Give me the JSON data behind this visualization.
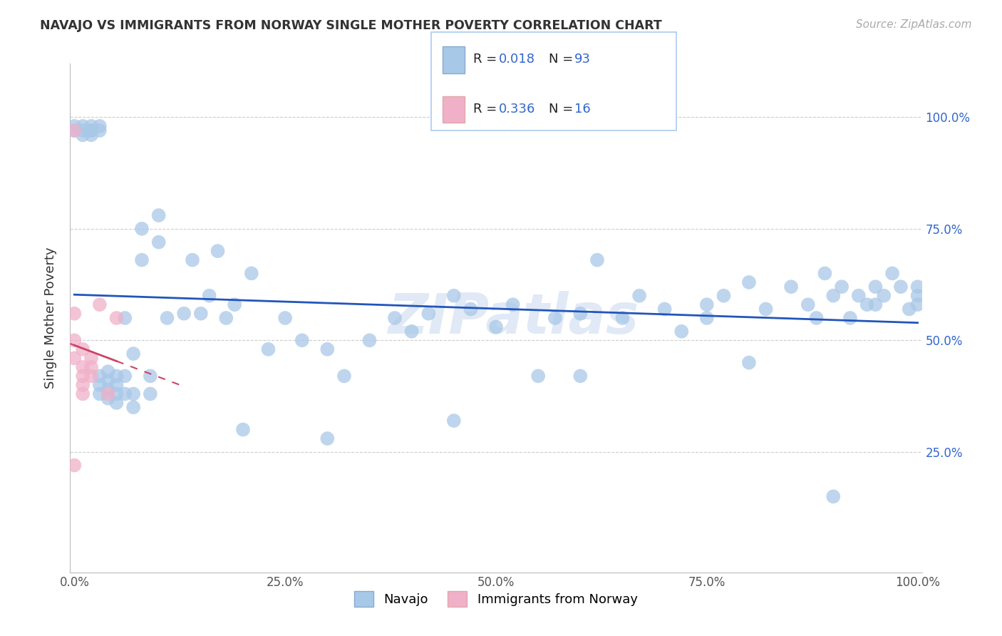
{
  "title": "NAVAJO VS IMMIGRANTS FROM NORWAY SINGLE MOTHER POVERTY CORRELATION CHART",
  "source": "Source: ZipAtlas.com",
  "ylabel": "Single Mother Poverty",
  "navajo_R": 0.018,
  "navajo_N": 93,
  "norway_R": 0.336,
  "norway_N": 16,
  "navajo_color": "#a8c8e8",
  "norway_color": "#f0b0c8",
  "navajo_line_color": "#2255bb",
  "norway_line_color": "#cc4466",
  "legend_labels": [
    "Navajo",
    "Immigrants from Norway"
  ],
  "background_color": "#ffffff",
  "watermark": "ZIPatlas",
  "navajo_x": [
    0.0,
    0.0,
    0.01,
    0.01,
    0.01,
    0.02,
    0.02,
    0.02,
    0.02,
    0.03,
    0.03,
    0.03,
    0.03,
    0.03,
    0.04,
    0.04,
    0.04,
    0.04,
    0.05,
    0.05,
    0.05,
    0.05,
    0.06,
    0.06,
    0.06,
    0.07,
    0.07,
    0.07,
    0.08,
    0.08,
    0.09,
    0.09,
    0.1,
    0.1,
    0.11,
    0.13,
    0.14,
    0.15,
    0.16,
    0.17,
    0.18,
    0.19,
    0.21,
    0.23,
    0.25,
    0.27,
    0.3,
    0.32,
    0.35,
    0.38,
    0.4,
    0.42,
    0.45,
    0.47,
    0.5,
    0.52,
    0.55,
    0.57,
    0.6,
    0.62,
    0.65,
    0.67,
    0.7,
    0.72,
    0.75,
    0.77,
    0.8,
    0.82,
    0.85,
    0.87,
    0.88,
    0.89,
    0.9,
    0.91,
    0.92,
    0.93,
    0.94,
    0.95,
    0.96,
    0.97,
    0.98,
    0.99,
    1.0,
    1.0,
    1.0,
    0.2,
    0.3,
    0.45,
    0.6,
    0.75,
    0.8,
    0.9,
    0.95
  ],
  "navajo_y": [
    0.97,
    0.98,
    0.96,
    0.97,
    0.98,
    0.96,
    0.97,
    0.97,
    0.98,
    0.97,
    0.98,
    0.38,
    0.4,
    0.42,
    0.37,
    0.39,
    0.41,
    0.43,
    0.36,
    0.38,
    0.4,
    0.42,
    0.38,
    0.55,
    0.42,
    0.47,
    0.35,
    0.38,
    0.68,
    0.75,
    0.38,
    0.42,
    0.72,
    0.78,
    0.55,
    0.56,
    0.68,
    0.56,
    0.6,
    0.7,
    0.55,
    0.58,
    0.65,
    0.48,
    0.55,
    0.5,
    0.48,
    0.42,
    0.5,
    0.55,
    0.52,
    0.56,
    0.6,
    0.57,
    0.53,
    0.58,
    0.42,
    0.55,
    0.56,
    0.68,
    0.55,
    0.6,
    0.57,
    0.52,
    0.58,
    0.6,
    0.63,
    0.57,
    0.62,
    0.58,
    0.55,
    0.65,
    0.6,
    0.62,
    0.55,
    0.6,
    0.58,
    0.62,
    0.6,
    0.65,
    0.62,
    0.57,
    0.6,
    0.62,
    0.58,
    0.3,
    0.28,
    0.32,
    0.42,
    0.55,
    0.45,
    0.15,
    0.58
  ],
  "norway_x": [
    0.0,
    0.0,
    0.0,
    0.0,
    0.0,
    0.01,
    0.01,
    0.01,
    0.01,
    0.01,
    0.02,
    0.02,
    0.02,
    0.03,
    0.04,
    0.05
  ],
  "norway_y": [
    0.97,
    0.56,
    0.5,
    0.46,
    0.22,
    0.48,
    0.44,
    0.42,
    0.4,
    0.38,
    0.46,
    0.44,
    0.42,
    0.58,
    0.38,
    0.55
  ],
  "norway_trend_x0": -0.005,
  "norway_trend_x1": 0.13,
  "navajo_trend_x0": 0.0,
  "navajo_trend_x1": 1.0,
  "xlim": [
    -0.005,
    1.005
  ],
  "ylim": [
    -0.02,
    1.12
  ],
  "xticks": [
    0.0,
    0.25,
    0.5,
    0.75,
    1.0
  ],
  "xticklabels": [
    "0.0%",
    "25.0%",
    "50.0%",
    "75.0%",
    "100.0%"
  ],
  "yticks": [
    0.25,
    0.5,
    0.75,
    1.0
  ],
  "yticklabels": [
    "25.0%",
    "50.0%",
    "75.0%",
    "100.0%"
  ]
}
